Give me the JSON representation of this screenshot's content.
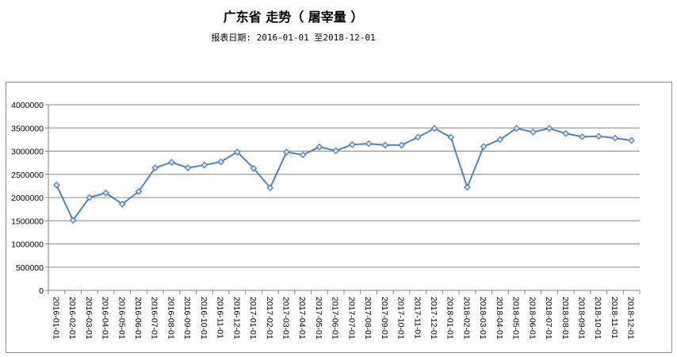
{
  "header": {
    "title": "广东省 走势（ 屠宰量 ）",
    "subtitle": "报表日期: 2016-01-01 至2018-12-01"
  },
  "chart_data": {
    "type": "line",
    "title": "",
    "xlabel": "",
    "ylabel": "",
    "ylim": [
      0,
      4000000
    ],
    "yticks": [
      "0",
      "500000",
      "1000000",
      "1500000",
      "2000000",
      "2500000",
      "3000000",
      "3500000",
      "4000000"
    ],
    "grid": true,
    "legend": "none",
    "line_color": "#4f81bd",
    "categories": [
      "2016-01-01",
      "2016-02-01",
      "2016-03-01",
      "2016-04-01",
      "2016-05-01",
      "2016-06-01",
      "2016-07-01",
      "2016-08-01",
      "2016-09-01",
      "2016-10-01",
      "2016-11-01",
      "2016-12-01",
      "2017-01-01",
      "2017-02-01",
      "2017-03-01",
      "2017-04-01",
      "2017-05-01",
      "2017-06-01",
      "2017-07-01",
      "2017-08-01",
      "2017-09-01",
      "2017-10-01",
      "2017-11-01",
      "2017-12-01",
      "2018-01-01",
      "2018-02-01",
      "2018-03-01",
      "2018-04-01",
      "2018-05-01",
      "2018-06-01",
      "2018-07-01",
      "2018-08-01",
      "2018-09-01",
      "2018-10-01",
      "2018-11-01",
      "2018-12-01"
    ],
    "series": [
      {
        "values": [
          2270000,
          1510000,
          2000000,
          2100000,
          1860000,
          2130000,
          2640000,
          2760000,
          2640000,
          2700000,
          2770000,
          2980000,
          2630000,
          2210000,
          2980000,
          2920000,
          3090000,
          3010000,
          3140000,
          3160000,
          3130000,
          3130000,
          3300000,
          3490000,
          3300000,
          2220000,
          3100000,
          3250000,
          3490000,
          3410000,
          3490000,
          3380000,
          3310000,
          3320000,
          3280000,
          3230000
        ]
      }
    ]
  }
}
